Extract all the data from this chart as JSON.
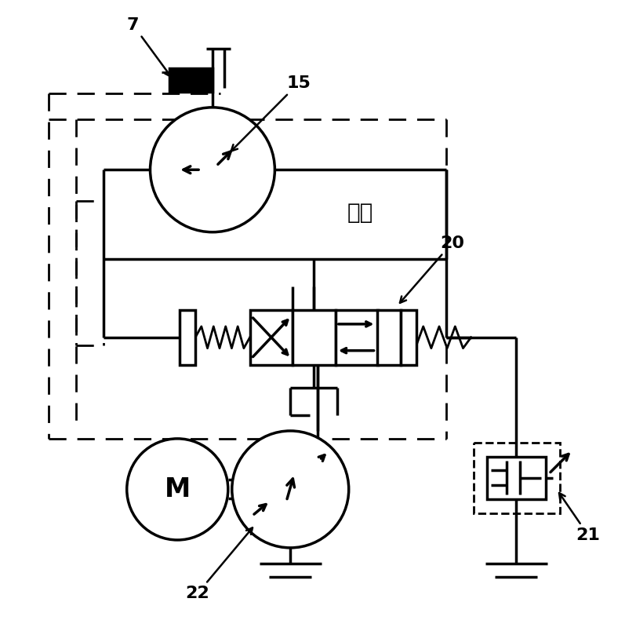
{
  "bg_color": "#ffffff",
  "line_color": "#000000",
  "lw": 2.5,
  "dlw": 2.0,
  "figsize": [
    8.12,
    7.95
  ],
  "dpi": 100,
  "chinese_text": "马达",
  "M_text": "M",
  "label_fs": 16
}
